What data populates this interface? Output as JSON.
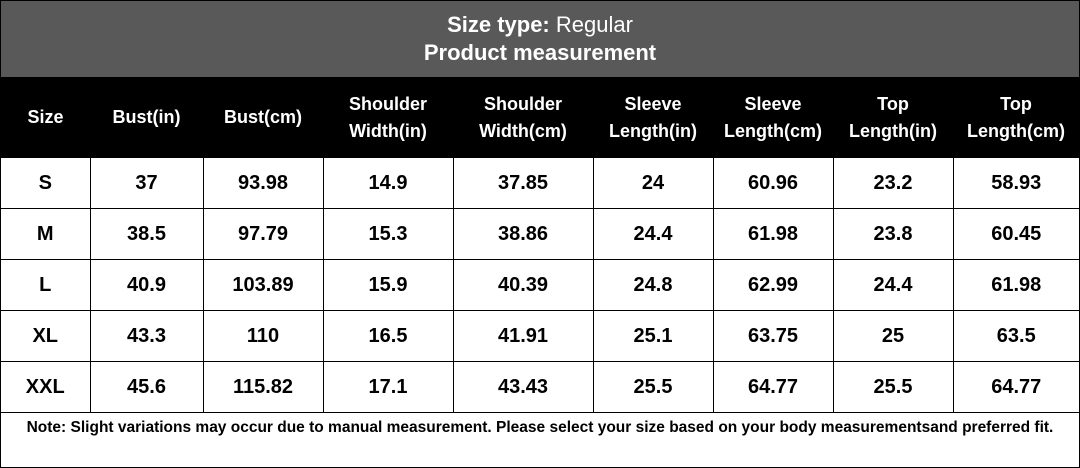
{
  "header": {
    "label": "Size type:",
    "value": "Regular",
    "subtitle": "Product measurement"
  },
  "table": {
    "columns": [
      "Size",
      "Bust(in)",
      "Bust(cm)",
      "Shoulder Width(in)",
      "Shoulder Width(cm)",
      "Sleeve Length(in)",
      "Sleeve Length(cm)",
      "Top Length(in)",
      "Top Length(cm)"
    ],
    "rows": [
      [
        "S",
        "37",
        "93.98",
        "14.9",
        "37.85",
        "24",
        "60.96",
        "23.2",
        "58.93"
      ],
      [
        "M",
        "38.5",
        "97.79",
        "15.3",
        "38.86",
        "24.4",
        "61.98",
        "23.8",
        "60.45"
      ],
      [
        "L",
        "40.9",
        "103.89",
        "15.9",
        "40.39",
        "24.8",
        "62.99",
        "24.4",
        "61.98"
      ],
      [
        "XL",
        "43.3",
        "110",
        "16.5",
        "41.91",
        "25.1",
        "63.75",
        "25",
        "63.5"
      ],
      [
        "XXL",
        "45.6",
        "115.82",
        "17.1",
        "43.43",
        "25.5",
        "64.77",
        "25.5",
        "64.77"
      ]
    ]
  },
  "note": "Note: Slight variations may occur due to manual measurement. Please select your size based on your body measurementsand preferred fit."
}
